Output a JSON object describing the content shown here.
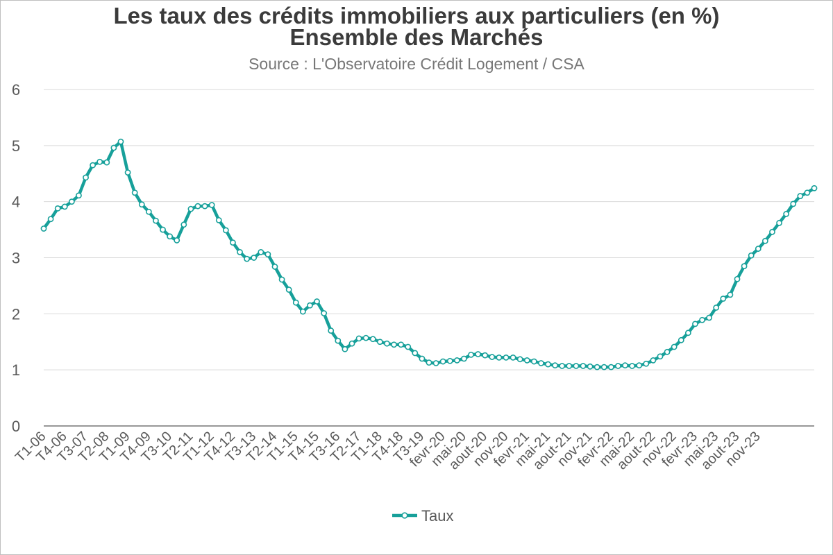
{
  "chart_data": {
    "type": "line",
    "title": "Les taux des crédits immobiliers aux particuliers (en %)",
    "subtitle": "Ensemble des Marchés",
    "source": "Source : L'Observatoire Crédit Logement / CSA",
    "xlabel": "",
    "ylabel": "",
    "ylim": [
      0,
      6
    ],
    "yticks": [
      0,
      1,
      2,
      3,
      4,
      5,
      6
    ],
    "grid": true,
    "legend_position": "bottom",
    "series_color": "#17a09a",
    "marker_fill": "#ffffff",
    "tick_labels": [
      "T1-06",
      "T4-06",
      "T3-07",
      "T2-08",
      "T1-09",
      "T4-09",
      "T3-10",
      "T2-11",
      "T1-12",
      "T4-12",
      "T3-13",
      "T2-14",
      "T1-15",
      "T4-15",
      "T3-16",
      "T2-17",
      "T1-18",
      "T4-18",
      "T3-19",
      "fevr-20",
      "mai-20",
      "aout-20",
      "nov-20",
      "fevr-21",
      "mai-21",
      "aout-21",
      "nov-21",
      "fevr-22",
      "mai-22",
      "aout-22",
      "nov-22",
      "fevr-23",
      "mai-23",
      "aout-23",
      "nov-23"
    ],
    "series": [
      {
        "name": "Taux",
        "values": [
          3.52,
          3.69,
          3.88,
          3.91,
          4.0,
          4.11,
          4.43,
          4.65,
          4.71,
          4.7,
          4.96,
          5.07,
          4.52,
          4.16,
          3.95,
          3.82,
          3.66,
          3.5,
          3.38,
          3.31,
          3.59,
          3.87,
          3.92,
          3.92,
          3.94,
          3.67,
          3.49,
          3.27,
          3.1,
          2.98,
          3.0,
          3.1,
          3.06,
          2.84,
          2.61,
          2.43,
          2.2,
          2.04,
          2.15,
          2.22,
          2.01,
          1.7,
          1.52,
          1.37,
          1.47,
          1.56,
          1.57,
          1.55,
          1.5,
          1.47,
          1.45,
          1.45,
          1.41,
          1.3,
          1.2,
          1.13,
          1.12,
          1.15,
          1.16,
          1.17,
          1.2,
          1.27,
          1.28,
          1.26,
          1.23,
          1.22,
          1.22,
          1.22,
          1.19,
          1.17,
          1.15,
          1.12,
          1.1,
          1.08,
          1.07,
          1.07,
          1.07,
          1.07,
          1.06,
          1.05,
          1.05,
          1.05,
          1.07,
          1.08,
          1.07,
          1.08,
          1.11,
          1.17,
          1.24,
          1.32,
          1.41,
          1.53,
          1.66,
          1.82,
          1.89,
          1.93,
          2.11,
          2.27,
          2.34,
          2.62,
          2.85,
          3.04,
          3.16,
          3.3,
          3.46,
          3.62,
          3.78,
          3.96,
          4.1,
          4.16,
          4.24
        ]
      }
    ]
  }
}
